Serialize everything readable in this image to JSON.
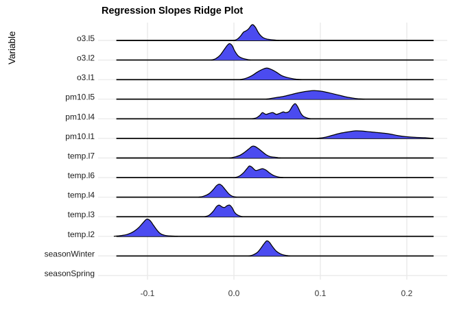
{
  "chart_data": {
    "type": "area",
    "variant": "ridgeline-density",
    "title": "Regression Slopes Ridge Plot",
    "xlabel": "",
    "ylabel": "Variable",
    "xlim": [
      -0.157,
      0.247
    ],
    "x_ticks": [
      -0.1,
      0.0,
      0.1,
      0.2
    ],
    "x_tick_labels": [
      "-0.1",
      "0.0",
      "0.1",
      "0.2"
    ],
    "baseline_range": [
      -0.136,
      0.231
    ],
    "grid": true,
    "legend": false,
    "colors": {
      "fill": "#4B4BF0",
      "outline": "#000000",
      "baseline": "#141414",
      "grid": "#E8E8E8",
      "tick_text": "#333333",
      "label_text": "#1a1a1a"
    },
    "categories": [
      "o3.l5",
      "o3.l2",
      "o3.l1",
      "pm10.l5",
      "pm10.l4",
      "pm10.l1",
      "temp.l7",
      "temp.l6",
      "temp.l4",
      "temp.l3",
      "temp.l2",
      "seasonWinter",
      "seasonSpring"
    ],
    "series": [
      {
        "name": "o3.l5",
        "has_baseline": true,
        "points": [
          [
            0.0,
            0
          ],
          [
            0.004,
            2
          ],
          [
            0.008,
            7
          ],
          [
            0.011,
            12
          ],
          [
            0.014,
            14
          ],
          [
            0.017,
            17
          ],
          [
            0.02,
            22
          ],
          [
            0.022,
            23
          ],
          [
            0.025,
            19
          ],
          [
            0.028,
            12
          ],
          [
            0.031,
            7
          ],
          [
            0.034,
            4
          ],
          [
            0.038,
            2
          ],
          [
            0.044,
            1
          ],
          [
            0.052,
            0
          ]
        ]
      },
      {
        "name": "o3.l2",
        "has_baseline": true,
        "points": [
          [
            -0.026,
            0
          ],
          [
            -0.021,
            2
          ],
          [
            -0.016,
            7
          ],
          [
            -0.012,
            14
          ],
          [
            -0.008,
            21
          ],
          [
            -0.005,
            24
          ],
          [
            -0.002,
            21
          ],
          [
            0.001,
            13
          ],
          [
            0.005,
            6
          ],
          [
            0.009,
            3
          ],
          [
            0.013,
            1.5
          ],
          [
            0.019,
            0
          ]
        ]
      },
      {
        "name": "o3.l1",
        "has_baseline": true,
        "points": [
          [
            0.007,
            0
          ],
          [
            0.014,
            2
          ],
          [
            0.021,
            6
          ],
          [
            0.027,
            11
          ],
          [
            0.033,
            15
          ],
          [
            0.038,
            17
          ],
          [
            0.043,
            15
          ],
          [
            0.049,
            11
          ],
          [
            0.055,
            6
          ],
          [
            0.062,
            3
          ],
          [
            0.07,
            1
          ],
          [
            0.078,
            0
          ]
        ]
      },
      {
        "name": "pm10.l5",
        "has_baseline": true,
        "points": [
          [
            0.037,
            0
          ],
          [
            0.047,
            2
          ],
          [
            0.057,
            4
          ],
          [
            0.067,
            7
          ],
          [
            0.077,
            10
          ],
          [
            0.087,
            12
          ],
          [
            0.094,
            12.5
          ],
          [
            0.102,
            11.5
          ],
          [
            0.111,
            9
          ],
          [
            0.121,
            6
          ],
          [
            0.131,
            3
          ],
          [
            0.141,
            1
          ],
          [
            0.151,
            0
          ]
        ]
      },
      {
        "name": "pm10.l4",
        "has_baseline": true,
        "points": [
          [
            0.021,
            0
          ],
          [
            0.026,
            1.5
          ],
          [
            0.03,
            5
          ],
          [
            0.033,
            9
          ],
          [
            0.037,
            6.5
          ],
          [
            0.041,
            8
          ],
          [
            0.045,
            9
          ],
          [
            0.049,
            6.5
          ],
          [
            0.053,
            8
          ],
          [
            0.057,
            10
          ],
          [
            0.06,
            9
          ],
          [
            0.064,
            11
          ],
          [
            0.068,
            19
          ],
          [
            0.071,
            22
          ],
          [
            0.074,
            17
          ],
          [
            0.077,
            9
          ],
          [
            0.08,
            4
          ],
          [
            0.084,
            1.5
          ],
          [
            0.089,
            0
          ]
        ]
      },
      {
        "name": "pm10.l1",
        "has_baseline": true,
        "points": [
          [
            0.096,
            0
          ],
          [
            0.105,
            1.5
          ],
          [
            0.114,
            4.5
          ],
          [
            0.123,
            7.5
          ],
          [
            0.132,
            9.5
          ],
          [
            0.141,
            11
          ],
          [
            0.15,
            10.5
          ],
          [
            0.158,
            9.5
          ],
          [
            0.166,
            8.5
          ],
          [
            0.174,
            7.5
          ],
          [
            0.182,
            6
          ],
          [
            0.19,
            4
          ],
          [
            0.199,
            2.5
          ],
          [
            0.21,
            1.5
          ],
          [
            0.221,
            1
          ],
          [
            0.23,
            0
          ]
        ]
      },
      {
        "name": "temp.l7",
        "has_baseline": true,
        "points": [
          [
            -0.005,
            0
          ],
          [
            0.001,
            1.5
          ],
          [
            0.007,
            4
          ],
          [
            0.012,
            8
          ],
          [
            0.017,
            13
          ],
          [
            0.021,
            17
          ],
          [
            0.024,
            17
          ],
          [
            0.028,
            14
          ],
          [
            0.032,
            10
          ],
          [
            0.037,
            5
          ],
          [
            0.042,
            2
          ],
          [
            0.048,
            1
          ],
          [
            0.054,
            0
          ]
        ]
      },
      {
        "name": "temp.l6",
        "has_baseline": true,
        "points": [
          [
            0.001,
            0
          ],
          [
            0.006,
            2
          ],
          [
            0.011,
            7
          ],
          [
            0.015,
            13
          ],
          [
            0.018,
            17
          ],
          [
            0.021,
            15
          ],
          [
            0.025,
            10.5
          ],
          [
            0.029,
            11.5
          ],
          [
            0.033,
            13
          ],
          [
            0.037,
            11
          ],
          [
            0.041,
            7
          ],
          [
            0.046,
            3
          ],
          [
            0.051,
            1
          ],
          [
            0.057,
            0
          ]
        ]
      },
      {
        "name": "temp.l4",
        "has_baseline": true,
        "points": [
          [
            -0.041,
            0
          ],
          [
            -0.035,
            1.5
          ],
          [
            -0.029,
            5
          ],
          [
            -0.024,
            11
          ],
          [
            -0.02,
            17
          ],
          [
            -0.017,
            19
          ],
          [
            -0.014,
            17
          ],
          [
            -0.01,
            11
          ],
          [
            -0.006,
            5
          ],
          [
            -0.002,
            1.5
          ],
          [
            0.003,
            0
          ]
        ]
      },
      {
        "name": "temp.l3",
        "has_baseline": true,
        "points": [
          [
            -0.034,
            0
          ],
          [
            -0.029,
            2
          ],
          [
            -0.024,
            8
          ],
          [
            -0.02,
            15
          ],
          [
            -0.017,
            17
          ],
          [
            -0.014,
            14.5
          ],
          [
            -0.011,
            13.5
          ],
          [
            -0.008,
            16
          ],
          [
            -0.005,
            17
          ],
          [
            -0.002,
            13
          ],
          [
            0.001,
            6
          ],
          [
            0.005,
            2
          ],
          [
            0.01,
            0
          ]
        ]
      },
      {
        "name": "temp.l2",
        "has_baseline": true,
        "points": [
          [
            -0.139,
            0
          ],
          [
            -0.131,
            1
          ],
          [
            -0.123,
            3
          ],
          [
            -0.116,
            7
          ],
          [
            -0.11,
            13
          ],
          [
            -0.105,
            20
          ],
          [
            -0.101,
            25
          ],
          [
            -0.097,
            23
          ],
          [
            -0.093,
            16
          ],
          [
            -0.089,
            9
          ],
          [
            -0.085,
            4
          ],
          [
            -0.08,
            1.5
          ],
          [
            -0.073,
            0.5
          ],
          [
            -0.065,
            0
          ]
        ]
      },
      {
        "name": "seasonWinter",
        "has_baseline": true,
        "points": [
          [
            0.017,
            0
          ],
          [
            0.022,
            1.5
          ],
          [
            0.027,
            5
          ],
          [
            0.031,
            11
          ],
          [
            0.035,
            18
          ],
          [
            0.038,
            22
          ],
          [
            0.041,
            20
          ],
          [
            0.045,
            13
          ],
          [
            0.049,
            7
          ],
          [
            0.054,
            3
          ],
          [
            0.059,
            1
          ],
          [
            0.065,
            0
          ]
        ]
      },
      {
        "name": "seasonSpring",
        "has_baseline": false,
        "points": []
      }
    ]
  }
}
